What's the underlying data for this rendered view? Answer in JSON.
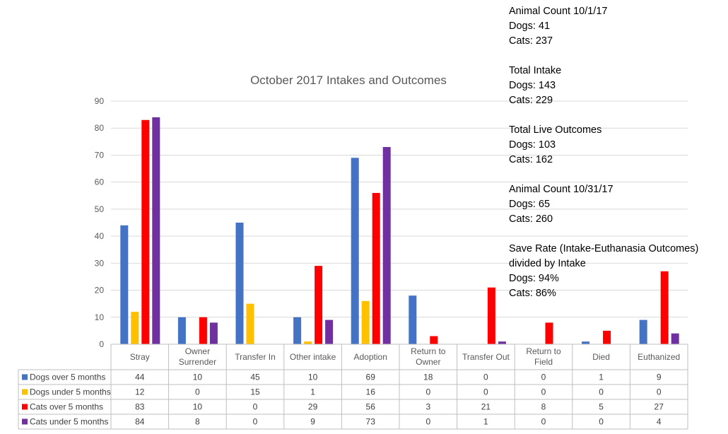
{
  "chart_data": {
    "type": "bar",
    "title": "October 2017 Intakes and Outcomes",
    "ylim": [
      0,
      90
    ],
    "y_ticks": [
      0,
      10,
      20,
      30,
      40,
      50,
      60,
      70,
      80,
      90
    ],
    "grid": true,
    "legend": "table",
    "categories": [
      [
        "Stray"
      ],
      [
        "Owner",
        "Surrender"
      ],
      [
        "Transfer In"
      ],
      [
        "Other intake"
      ],
      [
        "Adoption"
      ],
      [
        "Return to",
        "Owner"
      ],
      [
        "Transfer Out"
      ],
      [
        "Return to",
        "Field"
      ],
      [
        "Died"
      ],
      [
        "Euthanized"
      ]
    ],
    "series": [
      {
        "name": "Dogs over 5 months",
        "color": "#4472c4",
        "values": [
          44,
          10,
          45,
          10,
          69,
          18,
          0,
          0,
          1,
          9
        ]
      },
      {
        "name": "Dogs under 5 months",
        "color": "#ffc000",
        "values": [
          12,
          0,
          15,
          1,
          16,
          0,
          0,
          0,
          0,
          0
        ]
      },
      {
        "name": "Cats over 5 months",
        "color": "#ff0000",
        "values": [
          83,
          10,
          0,
          29,
          56,
          3,
          21,
          8,
          5,
          27
        ]
      },
      {
        "name": "Cats under 5 months",
        "color": "#7030a0",
        "values": [
          84,
          8,
          0,
          9,
          73,
          0,
          1,
          0,
          0,
          4
        ]
      }
    ]
  },
  "notes": [
    [
      "Animal Count 10/1/17",
      "Dogs: 41",
      "Cats: 237"
    ],
    [
      "Total Intake",
      "Dogs: 143",
      "Cats: 229"
    ],
    [
      "Total Live Outcomes",
      "Dogs: 103",
      "Cats: 162"
    ],
    [
      "Animal Count 10/31/17",
      "Dogs: 65",
      "Cats: 260"
    ],
    [
      "Save Rate (Intake-Euthanasia Outcomes)",
      "divided by Intake",
      "Dogs: 94%",
      "Cats: 86%"
    ]
  ]
}
